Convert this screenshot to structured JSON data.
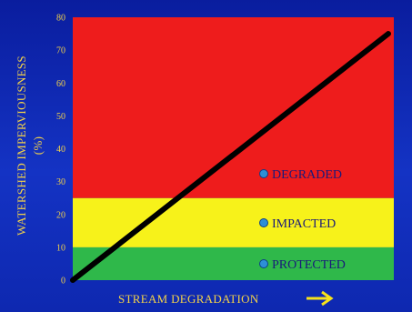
{
  "chart_data": {
    "type": "area",
    "title": "",
    "xlabel": "STREAM DEGRADATION",
    "ylabel": "WATERSHED IMPERVIOUSNESS (%)",
    "ylabel_line1": "WATERSHED IMPERVIOUSNESS",
    "ylabel_line2": "(%)",
    "ylim": [
      0,
      80
    ],
    "yticks": [
      "0",
      "10",
      "20",
      "30",
      "40",
      "50",
      "60",
      "70",
      "80"
    ],
    "ytick_values": [
      0,
      10,
      20,
      30,
      40,
      50,
      60,
      70,
      80
    ],
    "x_arrow_icon": "right-arrow-icon",
    "zones": [
      {
        "label": "PROTECTED",
        "y_from": 0,
        "y_to": 10,
        "color": "#2fb84a"
      },
      {
        "label": "IMPACTED",
        "y_from": 10,
        "y_to": 25,
        "color": "#f7f21a"
      },
      {
        "label": "DEGRADED",
        "y_from": 25,
        "y_to": 80,
        "color": "#ee1c1c"
      }
    ],
    "trend_line": {
      "x": [
        0,
        1
      ],
      "y": [
        0,
        75
      ],
      "color": "#000000"
    },
    "grid": false
  }
}
